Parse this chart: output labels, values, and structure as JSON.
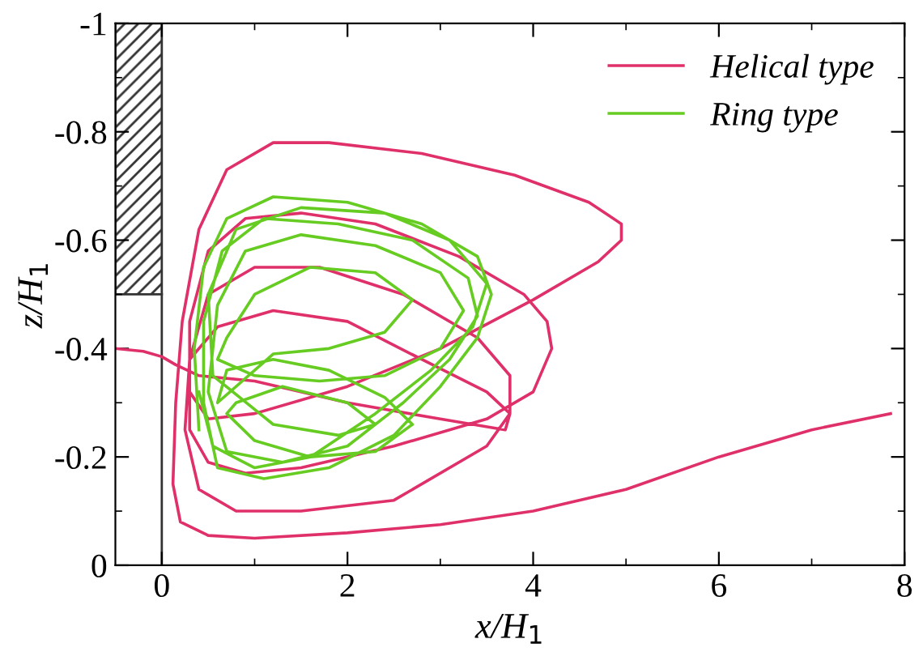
{
  "chart_data": {
    "type": "line",
    "xlabel": "x/H$_{1}$",
    "ylabel": "z/H$_{1}$",
    "xlim": [
      -0.5,
      8
    ],
    "ylim": [
      0,
      -1
    ],
    "xticks": [
      0,
      2,
      4,
      6,
      8
    ],
    "yticks": [
      0,
      -0.2,
      -0.4,
      -0.6,
      -0.8,
      -1
    ],
    "grid": false,
    "legend": "top right",
    "marker": "none",
    "line_style": "solid",
    "series": [
      {
        "name": "Helical type",
        "color": "#e0306a",
        "x": [
          7.85,
          7.0,
          6.0,
          5.0,
          4.0,
          3.0,
          2.0,
          1.0,
          0.5,
          0.2,
          0.12,
          0.15,
          0.22,
          0.4,
          0.7,
          1.2,
          1.8,
          2.8,
          3.8,
          4.6,
          4.95,
          4.95,
          4.7,
          4.0,
          3.0,
          2.0,
          1.0,
          0.5,
          0.3,
          0.3,
          0.5,
          0.9,
          1.5,
          2.3,
          3.2,
          3.9,
          4.15,
          4.2,
          4.0,
          3.5,
          2.5,
          1.5,
          0.9,
          0.5,
          0.3,
          0.3,
          0.5,
          1.0,
          1.7,
          2.6,
          3.4,
          3.75,
          3.75,
          3.5,
          2.5,
          1.5,
          0.8,
          0.4,
          0.25,
          0.3,
          0.6,
          1.2,
          2.0,
          2.8,
          3.5,
          3.75,
          3.7,
          3.0,
          2.0,
          1.0,
          0.4,
          0.15,
          0.0,
          -0.2,
          -0.5
        ],
        "values": [
          -0.28,
          -0.25,
          -0.2,
          -0.14,
          -0.1,
          -0.075,
          -0.06,
          -0.05,
          -0.055,
          -0.08,
          -0.15,
          -0.3,
          -0.45,
          -0.62,
          -0.73,
          -0.78,
          -0.78,
          -0.76,
          -0.72,
          -0.67,
          -0.63,
          -0.6,
          -0.56,
          -0.49,
          -0.4,
          -0.33,
          -0.28,
          -0.27,
          -0.32,
          -0.45,
          -0.58,
          -0.64,
          -0.65,
          -0.63,
          -0.57,
          -0.5,
          -0.45,
          -0.4,
          -0.32,
          -0.27,
          -0.22,
          -0.18,
          -0.17,
          -0.19,
          -0.25,
          -0.38,
          -0.5,
          -0.55,
          -0.55,
          -0.5,
          -0.42,
          -0.35,
          -0.28,
          -0.22,
          -0.12,
          -0.1,
          -0.1,
          -0.14,
          -0.25,
          -0.38,
          -0.44,
          -0.47,
          -0.45,
          -0.38,
          -0.32,
          -0.28,
          -0.25,
          -0.27,
          -0.3,
          -0.34,
          -0.35,
          -0.37,
          -0.385,
          -0.395,
          -0.4
        ]
      },
      {
        "name": "Ring type",
        "color": "#66cc22",
        "x": [
          0.4,
          0.35,
          0.45,
          0.7,
          1.2,
          2.0,
          2.8,
          3.4,
          3.55,
          3.4,
          3.0,
          2.5,
          1.8,
          1.1,
          0.6,
          0.45,
          0.45,
          0.65,
          1.1,
          1.9,
          2.7,
          3.3,
          3.4,
          3.1,
          2.6,
          2.0,
          1.3,
          0.7,
          0.5,
          0.6,
          0.9,
          1.5,
          2.3,
          3.0,
          3.25,
          3.0,
          2.4,
          1.7,
          1.0,
          0.6,
          0.7,
          1.0,
          1.6,
          2.3,
          2.7,
          2.4,
          1.8,
          1.2,
          0.6,
          0.7,
          1.2,
          1.8,
          2.4,
          2.7,
          2.3,
          1.6,
          1.0,
          0.7,
          0.8,
          1.3,
          2.0,
          2.3,
          1.9,
          1.2,
          0.55,
          0.5,
          0.8,
          1.5,
          2.4,
          3.1,
          3.5,
          3.35,
          2.9,
          2.3,
          1.6,
          1.0,
          0.55,
          0.4
        ],
        "values": [
          -0.25,
          -0.4,
          -0.55,
          -0.64,
          -0.68,
          -0.67,
          -0.63,
          -0.57,
          -0.5,
          -0.42,
          -0.33,
          -0.24,
          -0.18,
          -0.16,
          -0.18,
          -0.3,
          -0.45,
          -0.58,
          -0.64,
          -0.63,
          -0.6,
          -0.53,
          -0.46,
          -0.38,
          -0.3,
          -0.22,
          -0.19,
          -0.21,
          -0.32,
          -0.48,
          -0.58,
          -0.61,
          -0.59,
          -0.54,
          -0.47,
          -0.4,
          -0.35,
          -0.34,
          -0.35,
          -0.38,
          -0.42,
          -0.5,
          -0.55,
          -0.54,
          -0.49,
          -0.43,
          -0.4,
          -0.39,
          -0.3,
          -0.36,
          -0.38,
          -0.36,
          -0.31,
          -0.26,
          -0.21,
          -0.2,
          -0.23,
          -0.28,
          -0.3,
          -0.33,
          -0.3,
          -0.26,
          -0.24,
          -0.26,
          -0.35,
          -0.5,
          -0.62,
          -0.66,
          -0.65,
          -0.6,
          -0.52,
          -0.44,
          -0.36,
          -0.28,
          -0.2,
          -0.18,
          -0.22,
          -0.32
        ]
      }
    ]
  }
}
